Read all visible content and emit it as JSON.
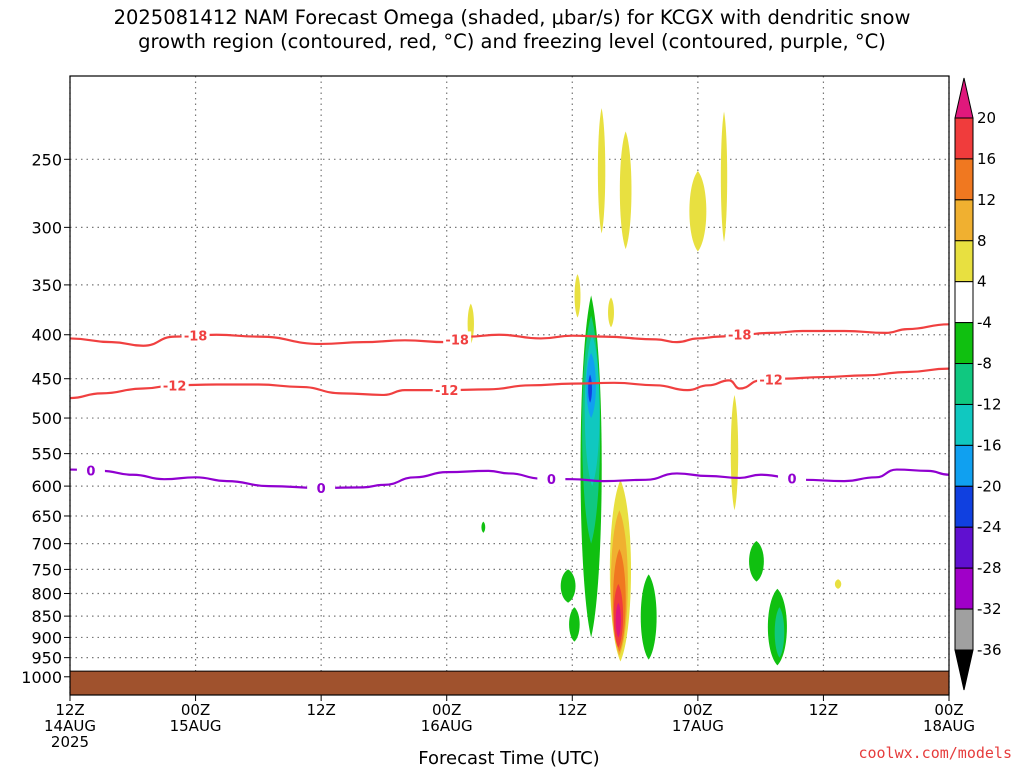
{
  "chart_data": {
    "type": "contour",
    "title_lines": [
      "2025081412 NAM Forecast Omega (shaded, μbar/s) for KCGX with dendritic snow",
      "growth region (contoured, red, °C) and freezing level (contoured, purple, °C)"
    ],
    "xlabel": "Forecast Time (UTC)",
    "x_ticks": [
      {
        "hours": 0,
        "line1": "12Z",
        "line2": "14AUG",
        "line3": "2025"
      },
      {
        "hours": 12,
        "line1": "00Z",
        "line2": "15AUG",
        "line3": ""
      },
      {
        "hours": 24,
        "line1": "12Z",
        "line2": "",
        "line3": ""
      },
      {
        "hours": 36,
        "line1": "00Z",
        "line2": "16AUG",
        "line3": ""
      },
      {
        "hours": 48,
        "line1": "12Z",
        "line2": "",
        "line3": ""
      },
      {
        "hours": 60,
        "line1": "00Z",
        "line2": "17AUG",
        "line3": ""
      },
      {
        "hours": 72,
        "line1": "12Z",
        "line2": "",
        "line3": ""
      },
      {
        "hours": 84,
        "line1": "00Z",
        "line2": "18AUG",
        "line3": ""
      }
    ],
    "y_ticks": [
      250,
      300,
      350,
      400,
      450,
      500,
      550,
      600,
      650,
      700,
      750,
      800,
      850,
      900,
      950,
      1000
    ],
    "y_range_hpa": [
      200,
      1050
    ],
    "x_range_hours": [
      0,
      84
    ],
    "grid": true,
    "contours": [
      {
        "label": "-18",
        "color": "#f04040",
        "label_positions": [
          12,
          37,
          64
        ],
        "points": [
          [
            0,
            404
          ],
          [
            4,
            408
          ],
          [
            7,
            412
          ],
          [
            10,
            402
          ],
          [
            14,
            400
          ],
          [
            18,
            402
          ],
          [
            24,
            410
          ],
          [
            28,
            408
          ],
          [
            32,
            406
          ],
          [
            36,
            408
          ],
          [
            38,
            402
          ],
          [
            41,
            400
          ],
          [
            45,
            404
          ],
          [
            48,
            401
          ],
          [
            51,
            402
          ],
          [
            56,
            405
          ],
          [
            58,
            408
          ],
          [
            60,
            404
          ],
          [
            62,
            402
          ],
          [
            64,
            400
          ],
          [
            67,
            398
          ],
          [
            70,
            396
          ],
          [
            74,
            396
          ],
          [
            78,
            398
          ],
          [
            80,
            394
          ],
          [
            84,
            389
          ]
        ]
      },
      {
        "label": "-12",
        "color": "#f04040",
        "label_positions": [
          10,
          36,
          67
        ],
        "points": [
          [
            0,
            474
          ],
          [
            3,
            468
          ],
          [
            7,
            462
          ],
          [
            10,
            458
          ],
          [
            14,
            457
          ],
          [
            18,
            457
          ],
          [
            22,
            460
          ],
          [
            26,
            468
          ],
          [
            30,
            470
          ],
          [
            32,
            464
          ],
          [
            36,
            464
          ],
          [
            40,
            463
          ],
          [
            44,
            458
          ],
          [
            48,
            456
          ],
          [
            52,
            455
          ],
          [
            56,
            458
          ],
          [
            59,
            464
          ],
          [
            61,
            458
          ],
          [
            63,
            452
          ],
          [
            64,
            462
          ],
          [
            66,
            452
          ],
          [
            68,
            450
          ],
          [
            72,
            448
          ],
          [
            76,
            446
          ],
          [
            80,
            442
          ],
          [
            84,
            438
          ]
        ]
      },
      {
        "label": "0",
        "color": "#9000d0",
        "label_positions": [
          2,
          24,
          46,
          69
        ],
        "points": [
          [
            0,
            574
          ],
          [
            3,
            576
          ],
          [
            6,
            582
          ],
          [
            9,
            589
          ],
          [
            12,
            586
          ],
          [
            15,
            592
          ],
          [
            19,
            600
          ],
          [
            24,
            603
          ],
          [
            28,
            602
          ],
          [
            30,
            598
          ],
          [
            33,
            586
          ],
          [
            36,
            578
          ],
          [
            40,
            576
          ],
          [
            42,
            580
          ],
          [
            45,
            588
          ],
          [
            48,
            589
          ],
          [
            51,
            592
          ],
          [
            55,
            590
          ],
          [
            58,
            580
          ],
          [
            61,
            584
          ],
          [
            64,
            587
          ],
          [
            66,
            582
          ],
          [
            70,
            590
          ],
          [
            74,
            592
          ],
          [
            77,
            586
          ],
          [
            79,
            574
          ],
          [
            82,
            576
          ],
          [
            84,
            582
          ]
        ]
      }
    ],
    "colorbar": {
      "labels": [
        "20",
        "16",
        "12",
        "8",
        "4",
        "-4",
        "-8",
        "-12",
        "-16",
        "-20",
        "-24",
        "-28",
        "-32",
        "-36"
      ],
      "colors": [
        "#e0187c",
        "#f03c3c",
        "#f07820",
        "#f0b030",
        "#e8e040",
        "#ffffff",
        "#10c010",
        "#10c880",
        "#10c8c0",
        "#10a0f0",
        "#1040e0",
        "#6010d0",
        "#a000c8",
        "#a0a0a0",
        "#000000"
      ],
      "units": "μbar/s"
    },
    "omega_regions": [
      {
        "level": 4,
        "color": "#e8e040",
        "cx": 50.8,
        "top": 218,
        "bottom": 305,
        "halfwidth": 0.35
      },
      {
        "level": 4,
        "color": "#e8e040",
        "cx": 53.1,
        "top": 232,
        "bottom": 318,
        "halfwidth": 0.55
      },
      {
        "level": 4,
        "color": "#e8e040",
        "cx": 60.0,
        "top": 258,
        "bottom": 320,
        "halfwidth": 0.8
      },
      {
        "level": 4,
        "color": "#e8e040",
        "cx": 62.5,
        "top": 220,
        "bottom": 312,
        "halfwidth": 0.3
      },
      {
        "level": 4,
        "color": "#e8e040",
        "cx": 38.3,
        "top": 368,
        "bottom": 410,
        "halfwidth": 0.3
      },
      {
        "level": 4,
        "color": "#e8e040",
        "cx": 48.5,
        "top": 340,
        "bottom": 382,
        "halfwidth": 0.28
      },
      {
        "level": 4,
        "color": "#e8e040",
        "cx": 51.7,
        "top": 362,
        "bottom": 392,
        "halfwidth": 0.28
      },
      {
        "level": 4,
        "color": "#e8e040",
        "cx": 63.5,
        "top": 470,
        "bottom": 640,
        "halfwidth": 0.35
      },
      {
        "level": 4,
        "color": "#e8e040",
        "cx": 73.4,
        "top": 770,
        "bottom": 790,
        "halfwidth": 0.3
      },
      {
        "level": -4,
        "color": "#10c010",
        "cx": 49.8,
        "top": 360,
        "bottom": 900,
        "halfwidth": 1.0
      },
      {
        "level": -8,
        "color": "#10c880",
        "cx": 49.8,
        "top": 380,
        "bottom": 700,
        "halfwidth": 0.85
      },
      {
        "level": -12,
        "color": "#10c8c0",
        "cx": 49.9,
        "top": 400,
        "bottom": 600,
        "halfwidth": 0.7
      },
      {
        "level": -16,
        "color": "#10a0f0",
        "cx": 49.8,
        "top": 420,
        "bottom": 500,
        "halfwidth": 0.45
      },
      {
        "level": -20,
        "color": "#1040e0",
        "cx": 49.7,
        "top": 445,
        "bottom": 480,
        "halfwidth": 0.18
      },
      {
        "level": -4,
        "color": "#10c010",
        "cx": 47.6,
        "top": 750,
        "bottom": 820,
        "halfwidth": 0.7
      },
      {
        "level": -4,
        "color": "#10c010",
        "cx": 48.2,
        "top": 830,
        "bottom": 910,
        "halfwidth": 0.5
      },
      {
        "level": -4,
        "color": "#10c010",
        "cx": 55.3,
        "top": 760,
        "bottom": 955,
        "halfwidth": 0.75
      },
      {
        "level": -4,
        "color": "#10c010",
        "cx": 65.6,
        "top": 695,
        "bottom": 775,
        "halfwidth": 0.7
      },
      {
        "level": -4,
        "color": "#10c010",
        "cx": 67.6,
        "top": 790,
        "bottom": 970,
        "halfwidth": 0.9
      },
      {
        "level": -8,
        "color": "#10c880",
        "cx": 67.8,
        "top": 830,
        "bottom": 950,
        "halfwidth": 0.45
      },
      {
        "level": -4,
        "color": "#10c010",
        "cx": 39.5,
        "top": 660,
        "bottom": 680,
        "halfwidth": 0.18
      },
      {
        "level": 4,
        "color": "#e8e040",
        "cx": 52.6,
        "top": 590,
        "bottom": 960,
        "halfwidth": 1.0
      },
      {
        "level": 8,
        "color": "#f0b030",
        "cx": 52.5,
        "top": 640,
        "bottom": 945,
        "halfwidth": 0.8
      },
      {
        "level": 12,
        "color": "#f07820",
        "cx": 52.5,
        "top": 710,
        "bottom": 935,
        "halfwidth": 0.6
      },
      {
        "level": 16,
        "color": "#f03c3c",
        "cx": 52.4,
        "top": 780,
        "bottom": 925,
        "halfwidth": 0.45
      },
      {
        "level": 20,
        "color": "#e0187c",
        "cx": 52.4,
        "top": 820,
        "bottom": 900,
        "halfwidth": 0.25
      }
    ],
    "ground": {
      "color": "#a0522d",
      "top_hpa": 985
    }
  },
  "credit": "coolwx.com/models"
}
